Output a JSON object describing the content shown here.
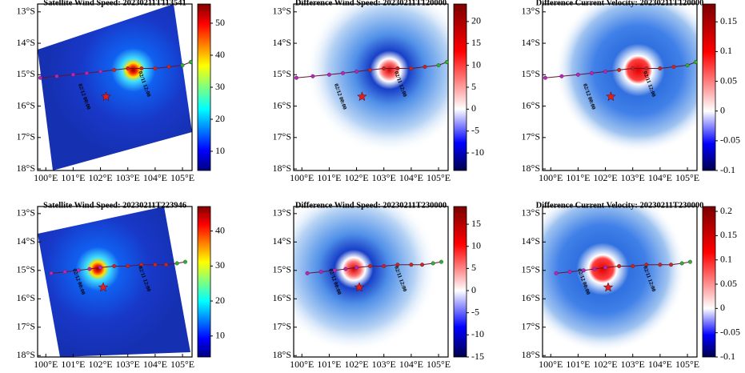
{
  "panels": [
    {
      "title": "Satellite Wind Speed: 20230211T113541",
      "colormap": "jet",
      "clim": [
        4,
        56
      ],
      "cticks": [
        10,
        20,
        30,
        40,
        50
      ],
      "xlim": [
        99.7,
        105.35
      ],
      "ylim": [
        -18.05,
        -12.75
      ],
      "xticks": [
        {
          "value": 100,
          "label": "100°E"
        },
        {
          "value": 101,
          "label": "101°E"
        },
        {
          "value": 102,
          "label": "102°E"
        },
        {
          "value": 103,
          "label": "103°E"
        },
        {
          "value": 104,
          "label": "104°E"
        },
        {
          "value": 105,
          "label": "105°E"
        }
      ],
      "yticks": [
        {
          "value": -13,
          "label": "13°S"
        },
        {
          "value": -14,
          "label": "14°S"
        },
        {
          "value": -15,
          "label": "15°S"
        },
        {
          "value": -16,
          "label": "16°S"
        },
        {
          "value": -17,
          "label": "17°S"
        },
        {
          "value": -18,
          "label": "18°S"
        }
      ],
      "track": {
        "lon": [
          99.8,
          100.4,
          101,
          101.5,
          102,
          102.5,
          103,
          103.5,
          104,
          104.5,
          105,
          105.3
        ],
        "lat": [
          -15.1,
          -15.05,
          -15,
          -14.95,
          -14.9,
          -14.85,
          -14.8,
          -14.8,
          -14.8,
          -14.75,
          -14.7,
          -14.6
        ],
        "colors": [
          "#c020c0",
          "#c020c0",
          "#c020c0",
          "#c020c0",
          "#c020c0",
          "#d02020",
          "#d02020",
          "#d02020",
          "#d02020",
          "#d02020",
          "#30b030",
          "#30b030"
        ]
      },
      "annotations": [
        "02/12 00:00",
        "02/11 12:00"
      ],
      "star": {
        "lon": 102.2,
        "lat": -15.7
      }
    },
    {
      "title": "Difference Wind Speed: 20230211T120000",
      "colormap": "seismic",
      "clim": [
        -14,
        24
      ],
      "cticks": [
        -10,
        -5,
        0,
        5,
        10,
        15,
        20
      ],
      "xlim": [
        99.7,
        105.35
      ],
      "ylim": [
        -18.05,
        -12.75
      ],
      "xticks": [
        {
          "value": 100,
          "label": "100°E"
        },
        {
          "value": 101,
          "label": "101°E"
        },
        {
          "value": 102,
          "label": "102°E"
        },
        {
          "value": 103,
          "label": "103°E"
        },
        {
          "value": 104,
          "label": "104°E"
        },
        {
          "value": 105,
          "label": "105°E"
        }
      ],
      "yticks": [
        {
          "value": -13,
          "label": "13°S"
        },
        {
          "value": -14,
          "label": "14°S"
        },
        {
          "value": -15,
          "label": "15°S"
        },
        {
          "value": -16,
          "label": "16°S"
        },
        {
          "value": -17,
          "label": "17°S"
        },
        {
          "value": -18,
          "label": "18°S"
        }
      ],
      "track": {
        "lon": [
          99.8,
          100.4,
          101,
          101.5,
          102,
          102.5,
          103,
          103.5,
          104,
          104.5,
          105,
          105.3
        ],
        "lat": [
          -15.1,
          -15.05,
          -15,
          -14.95,
          -14.9,
          -14.85,
          -14.8,
          -14.8,
          -14.8,
          -14.75,
          -14.7,
          -14.6
        ],
        "colors": [
          "#c020c0",
          "#c020c0",
          "#c020c0",
          "#c020c0",
          "#c020c0",
          "#d02020",
          "#d02020",
          "#d02020",
          "#d02020",
          "#d02020",
          "#30b030",
          "#30b030"
        ]
      },
      "annotations": [
        "02/12 00:00",
        "02/11 12:00"
      ],
      "star": {
        "lon": 102.2,
        "lat": -15.7
      }
    },
    {
      "title": "Difference Current Velocity: 20230211T120000",
      "colormap": "seismic",
      "clim": [
        -0.1,
        0.18
      ],
      "cticks": [
        -0.1,
        -0.05,
        0,
        0.05,
        0.1,
        0.15
      ],
      "xlim": [
        99.7,
        105.35
      ],
      "ylim": [
        -18.05,
        -12.75
      ],
      "xticks": [
        {
          "value": 100,
          "label": "100°E"
        },
        {
          "value": 101,
          "label": "101°E"
        },
        {
          "value": 102,
          "label": "102°E"
        },
        {
          "value": 103,
          "label": "103°E"
        },
        {
          "value": 104,
          "label": "104°E"
        },
        {
          "value": 105,
          "label": "105°E"
        }
      ],
      "yticks": [
        {
          "value": -13,
          "label": "13°S"
        },
        {
          "value": -14,
          "label": "14°S"
        },
        {
          "value": -15,
          "label": "15°S"
        },
        {
          "value": -16,
          "label": "16°S"
        },
        {
          "value": -17,
          "label": "17°S"
        },
        {
          "value": -18,
          "label": "18°S"
        }
      ],
      "track": {
        "lon": [
          99.8,
          100.4,
          101,
          101.5,
          102,
          102.5,
          103,
          103.5,
          104,
          104.5,
          105,
          105.3
        ],
        "lat": [
          -15.1,
          -15.05,
          -15,
          -14.95,
          -14.9,
          -14.85,
          -14.8,
          -14.8,
          -14.8,
          -14.75,
          -14.7,
          -14.6
        ],
        "colors": [
          "#c020c0",
          "#c020c0",
          "#c020c0",
          "#c020c0",
          "#c020c0",
          "#d02020",
          "#d02020",
          "#d02020",
          "#d02020",
          "#d02020",
          "#30b030",
          "#30b030"
        ]
      },
      "annotations": [
        "02/12 00:00",
        "02/11 12:00"
      ],
      "star": {
        "lon": 102.2,
        "lat": -15.7
      }
    },
    {
      "title": "Satellite Wind Speed: 20230211T223946",
      "colormap": "jet",
      "clim": [
        4,
        47
      ],
      "cticks": [
        10,
        20,
        30,
        40
      ],
      "xlim": [
        99.7,
        105.35
      ],
      "ylim": [
        -18.05,
        -12.75
      ],
      "xticks": [
        {
          "value": 100,
          "label": "100°E"
        },
        {
          "value": 101,
          "label": "101°E"
        },
        {
          "value": 102,
          "label": "102°E"
        },
        {
          "value": 103,
          "label": "103°E"
        },
        {
          "value": 104,
          "label": "104°E"
        },
        {
          "value": 105,
          "label": "105°E"
        }
      ],
      "yticks": [
        {
          "value": -13,
          "label": "13°S"
        },
        {
          "value": -14,
          "label": "14°S"
        },
        {
          "value": -15,
          "label": "15°S"
        },
        {
          "value": -16,
          "label": "16°S"
        },
        {
          "value": -17,
          "label": "17°S"
        },
        {
          "value": -18,
          "label": "18°S"
        }
      ],
      "track": {
        "lon": [
          100.2,
          100.7,
          101.2,
          101.6,
          102,
          102.5,
          103,
          103.5,
          104,
          104.4,
          104.8,
          105.1
        ],
        "lat": [
          -15.1,
          -15.05,
          -15,
          -14.95,
          -14.9,
          -14.85,
          -14.85,
          -14.8,
          -14.8,
          -14.8,
          -14.75,
          -14.7
        ],
        "colors": [
          "#c020c0",
          "#c020c0",
          "#c020c0",
          "#c020c0",
          "#c020c0",
          "#d02020",
          "#d02020",
          "#d02020",
          "#d02020",
          "#d02020",
          "#30b030",
          "#30b030"
        ]
      },
      "annotations": [
        "02/12 00:00",
        "02/11 12:00"
      ],
      "star": {
        "lon": 102.1,
        "lat": -15.6
      }
    },
    {
      "title": "Difference Wind Speed: 20230211T230000",
      "colormap": "seismic",
      "clim": [
        -15,
        19
      ],
      "cticks": [
        -15,
        -10,
        -5,
        0,
        5,
        10,
        15
      ],
      "xlim": [
        99.7,
        105.35
      ],
      "ylim": [
        -18.05,
        -12.75
      ],
      "xticks": [
        {
          "value": 100,
          "label": "100°E"
        },
        {
          "value": 101,
          "label": "101°E"
        },
        {
          "value": 102,
          "label": "102°E"
        },
        {
          "value": 103,
          "label": "103°E"
        },
        {
          "value": 104,
          "label": "104°E"
        },
        {
          "value": 105,
          "label": "105°E"
        }
      ],
      "yticks": [
        {
          "value": -13,
          "label": "13°S"
        },
        {
          "value": -14,
          "label": "14°S"
        },
        {
          "value": -15,
          "label": "15°S"
        },
        {
          "value": -16,
          "label": "16°S"
        },
        {
          "value": -17,
          "label": "17°S"
        },
        {
          "value": -18,
          "label": "18°S"
        }
      ],
      "track": {
        "lon": [
          100.2,
          100.7,
          101.2,
          101.6,
          102,
          102.5,
          103,
          103.5,
          104,
          104.4,
          104.8,
          105.1
        ],
        "lat": [
          -15.1,
          -15.05,
          -15,
          -14.95,
          -14.9,
          -14.85,
          -14.85,
          -14.8,
          -14.8,
          -14.8,
          -14.75,
          -14.7
        ],
        "colors": [
          "#c020c0",
          "#c020c0",
          "#c020c0",
          "#c020c0",
          "#c020c0",
          "#d02020",
          "#d02020",
          "#d02020",
          "#d02020",
          "#d02020",
          "#30b030",
          "#30b030"
        ]
      },
      "annotations": [
        "02/12 00:00",
        "02/11 12:00"
      ],
      "star": {
        "lon": 102.1,
        "lat": -15.6
      }
    },
    {
      "title": "Difference Current Velocity: 20230211T230000",
      "colormap": "seismic",
      "clim": [
        -0.1,
        0.21
      ],
      "cticks": [
        -0.1,
        -0.05,
        0,
        0.05,
        0.1,
        0.15,
        0.2
      ],
      "xlim": [
        99.7,
        105.35
      ],
      "ylim": [
        -18.05,
        -12.75
      ],
      "xticks": [
        {
          "value": 100,
          "label": "100°E"
        },
        {
          "value": 101,
          "label": "101°E"
        },
        {
          "value": 102,
          "label": "102°E"
        },
        {
          "value": 103,
          "label": "103°E"
        },
        {
          "value": 104,
          "label": "104°E"
        },
        {
          "value": 105,
          "label": "105°E"
        }
      ],
      "yticks": [
        {
          "value": -13,
          "label": "13°S"
        },
        {
          "value": -14,
          "label": "14°S"
        },
        {
          "value": -15,
          "label": "15°S"
        },
        {
          "value": -16,
          "label": "16°S"
        },
        {
          "value": -17,
          "label": "17°S"
        },
        {
          "value": -18,
          "label": "18°S"
        }
      ],
      "track": {
        "lon": [
          100.2,
          100.7,
          101.2,
          101.6,
          102,
          102.5,
          103,
          103.5,
          104,
          104.4,
          104.8,
          105.1
        ],
        "lat": [
          -15.1,
          -15.05,
          -15,
          -14.95,
          -14.9,
          -14.85,
          -14.85,
          -14.8,
          -14.8,
          -14.8,
          -14.75,
          -14.7
        ],
        "colors": [
          "#c020c0",
          "#c020c0",
          "#c020c0",
          "#c020c0",
          "#c020c0",
          "#d02020",
          "#d02020",
          "#d02020",
          "#d02020",
          "#d02020",
          "#30b030",
          "#30b030"
        ]
      },
      "annotations": [
        "02/12 00:00",
        "02/11 12:00"
      ],
      "star": {
        "lon": 102.1,
        "lat": -15.6
      }
    }
  ]
}
